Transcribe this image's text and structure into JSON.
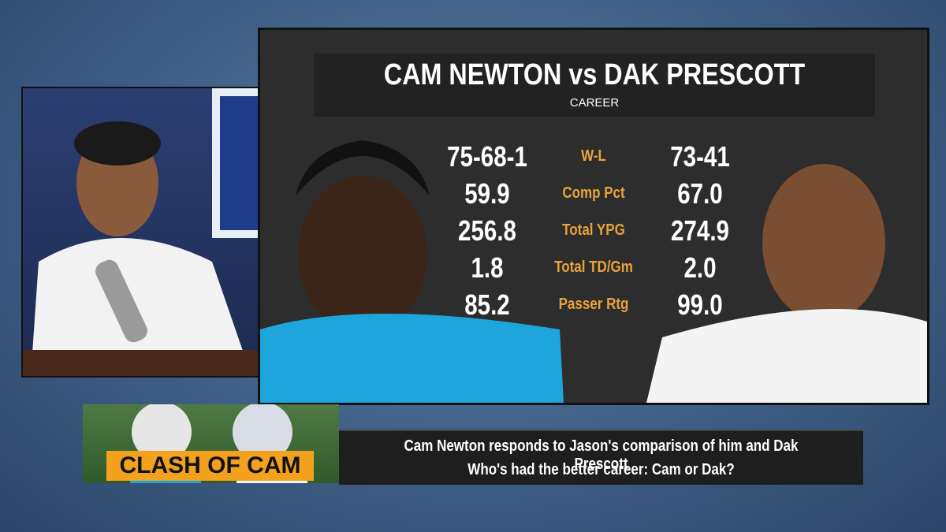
{
  "header": {
    "title": "CAM NEWTON vs DAK PRESCOTT",
    "subtitle": "CAREER"
  },
  "stats": [
    [
      "75-68-1",
      "W-L",
      "73-41"
    ],
    [
      "59.9",
      "Comp Pct",
      "67.0"
    ],
    [
      "256.8",
      "Total YPG",
      "274.9"
    ],
    [
      "1.8",
      "Total TD/Gm",
      "2.0"
    ],
    [
      "85.2",
      "Passer Rtg",
      "99.0"
    ]
  ],
  "lower_third": {
    "banner": "CLASH OF CAM",
    "line1": "Cam Newton responds to Jason's comparison of him and Dak Prescott",
    "line2": "Who's had the better career: Cam or Dak?"
  }
}
